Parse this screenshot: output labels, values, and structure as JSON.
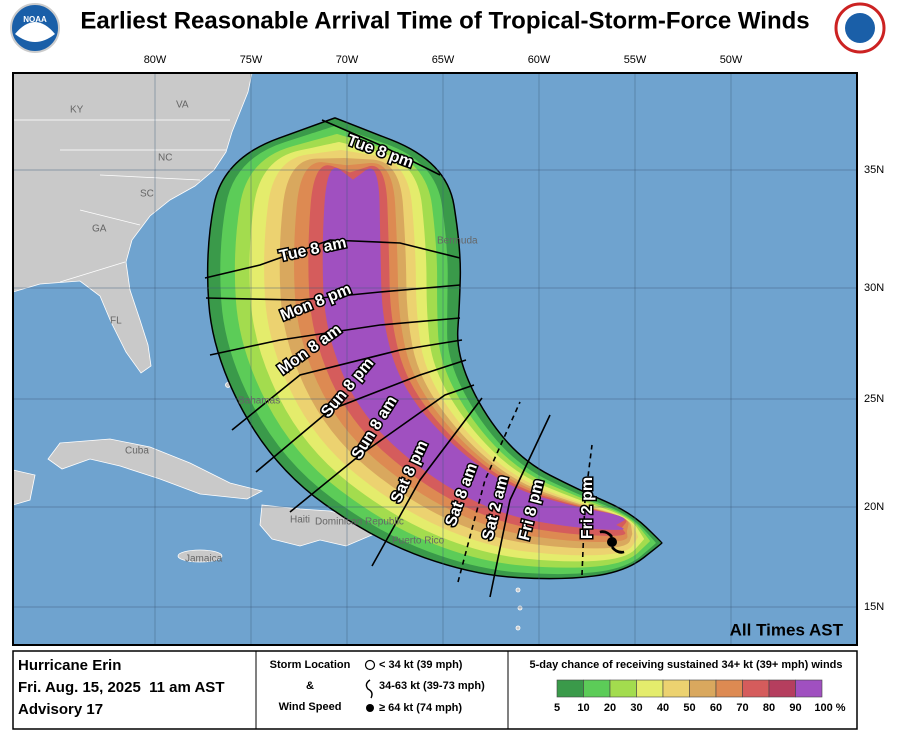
{
  "header": {
    "title": "Earliest Reasonable Arrival Time of Tropical-Storm-Force Winds"
  },
  "map": {
    "lon_labels": [
      "80W",
      "75W",
      "70W",
      "65W",
      "60W",
      "55W",
      "50W"
    ],
    "lat_labels": [
      "35N",
      "30N",
      "25N",
      "20N",
      "15N"
    ],
    "places": [
      "KY",
      "VA",
      "NC",
      "SC",
      "GA",
      "FL",
      "Bermuda",
      "Bahamas",
      "Cuba",
      "Haiti",
      "Dominican Republic",
      "Puerto Rico",
      "Jamaica"
    ],
    "times": [
      "Tue 8 pm",
      "Tue 8 am",
      "Mon 8 pm",
      "Mon 8 am",
      "Sun 8 pm",
      "Sun 8 am",
      "Sat 8 pm",
      "Sat 8 am",
      "Sat 2 am",
      "Fri 8 pm",
      "Fri 2 pm"
    ],
    "note": "All Times AST"
  },
  "footer": {
    "storm": {
      "name": "Hurricane Erin",
      "date": "Fri. Aug. 15, 2025  11 am AST",
      "advisory": "Advisory 17"
    },
    "key": {
      "heading": [
        "Storm Location",
        "&",
        "Wind Speed"
      ],
      "items": [
        "< 34 kt (39 mph)",
        "34-63 kt (39-73 mph)",
        "≥ 64 kt (74 mph)"
      ]
    },
    "scale": {
      "title": "5-day chance of receiving sustained 34+ kt (39+ mph) winds",
      "labels": [
        "5",
        "10",
        "20",
        "30",
        "40",
        "50",
        "60",
        "70",
        "80",
        "90",
        "100 %"
      ]
    }
  }
}
